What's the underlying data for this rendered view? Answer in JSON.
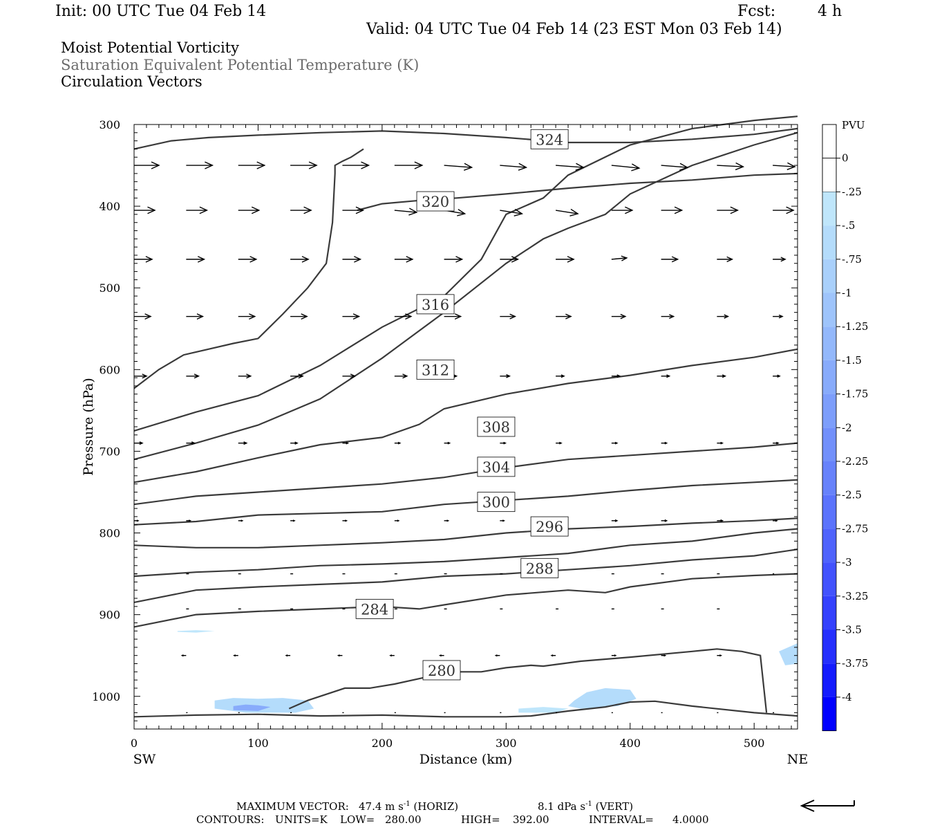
{
  "header": {
    "init": "Init: 00 UTC Tue 04 Feb 14",
    "fcst_label": "Fcst:",
    "fcst_value": "4 h",
    "valid": "Valid: 04 UTC Tue 04 Feb 14 (23 EST Mon 03 Feb 14)"
  },
  "fields": {
    "field1": "Moist Potential Vorticity",
    "field2": "Saturation Equivalent Potential Temperature (K)",
    "field3": "Circulation Vectors"
  },
  "footer": {
    "max_vector_label": "MAXIMUM VECTOR:",
    "max_vector_horiz": "47.4 m s",
    "horiz_exp": "-1",
    "horiz_tag": "(HORIZ)",
    "max_vector_vert": "8.1 dPa s",
    "vert_exp": "-1",
    "vert_tag": "(VERT)",
    "contours_label": "CONTOURS:",
    "units": "UNITS=K",
    "low": "LOW=",
    "low_value": "280.00",
    "high": "HIGH=",
    "high_value": "392.00",
    "interval": "INTERVAL=",
    "interval_value": "4.0000"
  },
  "colors": {
    "contour": "#3a3a3a",
    "vector": "#000000",
    "pv_light": "#bfe6fb",
    "pv_dark": "#0000ff"
  },
  "chart_data": {
    "type": "contour",
    "xlabel": "Distance (km)",
    "ylabel": "Pressure (hPa)",
    "xlim": [
      0,
      535
    ],
    "ylim": [
      1040,
      300
    ],
    "x_ticks": [
      0,
      100,
      200,
      300,
      400,
      500
    ],
    "y_ticks": [
      300,
      400,
      500,
      600,
      700,
      800,
      900,
      1000
    ],
    "x_end_labels": {
      "left": "SW",
      "right": "NE"
    },
    "colorbar": {
      "title": "PVU",
      "labels": [
        "0",
        "-.25",
        "-.5",
        "-.75",
        "-1",
        "-1.25",
        "-1.5",
        "-1.75",
        "-2",
        "-2.25",
        "-2.5",
        "-2.75",
        "-3",
        "-3.25",
        "-3.5",
        "-3.75",
        "-4"
      ],
      "colors": [
        "#ffffff",
        "#bfe6fb",
        "#b4dcfb",
        "#a9d0fb",
        "#9ec4fb",
        "#93b8fb",
        "#88abfb",
        "#7d9efb",
        "#7290fb",
        "#6782fb",
        "#5b73fc",
        "#4f63fc",
        "#4252fd",
        "#3441fd",
        "#252ffe",
        "#141bfe",
        "#0000ff"
      ]
    },
    "contour_labels": [
      "324",
      "320",
      "316",
      "312",
      "308",
      "304",
      "300",
      "296",
      "288",
      "284",
      "280"
    ],
    "contours": [
      {
        "value": 324,
        "x": [
          0,
          30,
          60,
          100,
          150,
          200,
          250,
          300,
          350,
          400,
          450,
          500,
          535
        ],
        "y": [
          330,
          320,
          316,
          313,
          310,
          308,
          311,
          316,
          322,
          322,
          318,
          312,
          305
        ]
      },
      {
        "value": 320,
        "x": [
          180,
          200,
          230,
          260,
          300,
          350,
          400,
          450,
          500,
          535
        ],
        "y": [
          405,
          397,
          393,
          390,
          385,
          378,
          372,
          368,
          362,
          360
        ]
      },
      {
        "value": 316,
        "x": [
          0,
          20,
          40,
          60,
          80,
          100,
          120,
          140,
          155,
          160,
          162,
          162,
          168,
          175,
          185
        ],
        "y": [
          623,
          600,
          582,
          575,
          568,
          562,
          532,
          500,
          470,
          420,
          360,
          350,
          345,
          340,
          330
        ]
      },
      {
        "value": 316,
        "x": [
          0,
          50,
          100,
          150,
          200,
          250,
          280,
          300,
          330,
          350,
          400,
          450,
          500,
          535
        ],
        "y": [
          675,
          652,
          632,
          595,
          548,
          510,
          465,
          410,
          390,
          362,
          325,
          305,
          295,
          290
        ]
      },
      {
        "value": 312,
        "x": [
          0,
          50,
          100,
          150,
          200,
          250,
          300,
          330,
          350,
          380,
          400,
          450,
          500,
          535
        ],
        "y": [
          710,
          690,
          668,
          636,
          586,
          530,
          470,
          440,
          427,
          410,
          385,
          350,
          325,
          310
        ]
      },
      {
        "value": 308,
        "x": [
          0,
          50,
          100,
          150,
          200,
          230,
          250,
          300,
          350,
          400,
          450,
          500,
          535
        ],
        "y": [
          738,
          725,
          708,
          692,
          683,
          667,
          648,
          630,
          617,
          607,
          595,
          585,
          575
        ]
      },
      {
        "value": 304,
        "x": [
          0,
          50,
          100,
          150,
          200,
          250,
          300,
          350,
          400,
          450,
          500,
          535
        ],
        "y": [
          765,
          755,
          750,
          745,
          740,
          732,
          720,
          710,
          705,
          700,
          695,
          690
        ]
      },
      {
        "value": 300,
        "x": [
          0,
          50,
          100,
          150,
          200,
          250,
          300,
          350,
          400,
          450,
          500,
          535
        ],
        "y": [
          790,
          786,
          778,
          776,
          774,
          765,
          760,
          755,
          748,
          742,
          738,
          735
        ]
      },
      {
        "value": 296,
        "x": [
          0,
          50,
          100,
          150,
          200,
          250,
          300,
          350,
          400,
          450,
          500,
          535
        ],
        "y": [
          815,
          818,
          818,
          815,
          812,
          808,
          800,
          795,
          792,
          788,
          785,
          782
        ]
      },
      {
        "value": 292,
        "x": [
          0,
          50,
          100,
          150,
          200,
          250,
          300,
          350,
          400,
          450,
          500,
          535
        ],
        "y": [
          853,
          848,
          845,
          840,
          838,
          835,
          830,
          825,
          815,
          810,
          800,
          795
        ]
      },
      {
        "value": 288,
        "x": [
          0,
          50,
          100,
          150,
          200,
          250,
          300,
          350,
          400,
          450,
          500,
          535
        ],
        "y": [
          885,
          870,
          866,
          863,
          860,
          853,
          850,
          845,
          840,
          833,
          828,
          820
        ]
      },
      {
        "value": 284,
        "x": [
          0,
          50,
          100,
          150,
          200,
          230,
          250,
          300,
          350,
          380,
          400,
          450,
          500,
          535
        ],
        "y": [
          915,
          900,
          896,
          893,
          890,
          893,
          888,
          876,
          870,
          873,
          866,
          856,
          852,
          850
        ]
      },
      {
        "value": 280,
        "x": [
          125,
          140,
          170,
          190,
          210,
          240,
          260,
          280,
          300,
          320,
          330,
          360,
          400,
          450,
          470,
          490,
          505,
          510
        ],
        "y": [
          1015,
          1005,
          990,
          990,
          985,
          975,
          970,
          970,
          965,
          962,
          963,
          957,
          952,
          945,
          942,
          945,
          950,
          1020
        ]
      },
      {
        "value": 280,
        "x": [
          0,
          50,
          100,
          150,
          200,
          250,
          300,
          320,
          350,
          380,
          400,
          420,
          450,
          500,
          535
        ],
        "y": [
          1025,
          1023,
          1022,
          1024,
          1023,
          1025,
          1025,
          1024,
          1018,
          1013,
          1007,
          1006,
          1012,
          1020,
          1024
        ]
      }
    ],
    "pv_regions": [
      {
        "value": -0.5,
        "x": [
          65,
          80,
          100,
          120,
          140,
          145,
          130,
          90,
          65
        ],
        "y": [
          1005,
          1002,
          1003,
          1002,
          1005,
          1015,
          1020,
          1020,
          1015
        ]
      },
      {
        "value": -1.5,
        "x": [
          80,
          90,
          100,
          110,
          100,
          80
        ],
        "y": [
          1012,
          1010,
          1011,
          1013,
          1018,
          1017
        ]
      },
      {
        "value": -0.25,
        "x": [
          35,
          50,
          65,
          50,
          35
        ],
        "y": [
          920,
          919,
          920,
          922,
          921
        ]
      },
      {
        "value": -0.5,
        "x": [
          355,
          365,
          380,
          400,
          405,
          390,
          360,
          350
        ],
        "y": [
          1005,
          995,
          990,
          992,
          1003,
          1012,
          1015,
          1012
        ]
      },
      {
        "value": -0.25,
        "x": [
          310,
          330,
          350,
          340,
          310
        ],
        "y": [
          1015,
          1013,
          1015,
          1020,
          1020
        ]
      },
      {
        "value": -0.5,
        "x": [
          520,
          535,
          535,
          525
        ],
        "y": [
          945,
          935,
          960,
          962
        ]
      }
    ],
    "vectors": [
      {
        "p": 350,
        "x": [
          0,
          42,
          84,
          126,
          168,
          210,
          250,
          295,
          340,
          385,
          425,
          470,
          515
        ],
        "u": [
          36,
          38,
          38,
          38,
          38,
          40,
          40,
          38,
          40,
          40,
          38,
          38,
          32
        ],
        "w": [
          0,
          0,
          0,
          0,
          0,
          0,
          -3,
          -3,
          -3,
          -4,
          -3,
          -2,
          -2
        ]
      },
      {
        "p": 405,
        "x": [
          0,
          42,
          84,
          126,
          168,
          210,
          250,
          295,
          340,
          385,
          425,
          470,
          515
        ],
        "u": [
          30,
          30,
          30,
          30,
          30,
          32,
          30,
          32,
          32,
          30,
          30,
          30,
          30
        ],
        "w": [
          0,
          0,
          0,
          0,
          0,
          -3,
          -5,
          -5,
          -5,
          0,
          0,
          0,
          0
        ]
      },
      {
        "p": 465,
        "x": [
          0,
          42,
          84,
          126,
          168,
          210,
          250,
          295,
          340,
          385,
          425,
          470,
          515
        ],
        "u": [
          26,
          26,
          26,
          26,
          26,
          26,
          26,
          26,
          26,
          22,
          24,
          22,
          18
        ],
        "w": [
          0,
          0,
          0,
          0,
          0,
          0,
          0,
          0,
          0,
          2,
          0,
          0,
          0
        ]
      },
      {
        "p": 535,
        "x": [
          0,
          42,
          84,
          126,
          168,
          210,
          250,
          295,
          340,
          385,
          425,
          470,
          515
        ],
        "u": [
          24,
          24,
          24,
          24,
          24,
          24,
          24,
          22,
          22,
          20,
          18,
          16,
          14
        ],
        "w": [
          0,
          0,
          0,
          0,
          0,
          0,
          0,
          0,
          0,
          0,
          0,
          0,
          0
        ]
      },
      {
        "p": 608,
        "x": [
          0,
          42,
          84,
          126,
          168,
          210,
          250,
          295,
          340,
          385,
          425,
          470,
          515
        ],
        "u": [
          18,
          18,
          18,
          18,
          18,
          18,
          18,
          14,
          12,
          12,
          12,
          12,
          10
        ],
        "w": [
          0,
          0,
          0,
          0,
          0,
          0,
          0,
          0,
          0,
          0,
          0,
          0,
          0
        ]
      },
      {
        "p": 690,
        "x": [
          0,
          42,
          84,
          126,
          168,
          210,
          250,
          295,
          340,
          385,
          425,
          470,
          515
        ],
        "u": [
          12,
          12,
          12,
          10,
          8,
          8,
          8,
          8,
          8,
          8,
          8,
          8,
          8
        ],
        "w": [
          0,
          0,
          0,
          0,
          0,
          0,
          0,
          0,
          0,
          0,
          0,
          0,
          0
        ]
      },
      {
        "p": 785,
        "x": [
          0,
          42,
          84,
          126,
          168,
          210,
          250,
          295,
          340,
          385,
          425,
          470,
          515
        ],
        "u": [
          6,
          6,
          6,
          6,
          6,
          6,
          6,
          6,
          6,
          8,
          8,
          8,
          6
        ],
        "w": [
          0,
          0,
          0,
          0,
          0,
          0,
          0,
          0,
          0,
          0,
          0,
          0,
          0
        ]
      },
      {
        "p": 850,
        "x": [
          0,
          42,
          84,
          126,
          168,
          210,
          250,
          295,
          340,
          385,
          425,
          470,
          515
        ],
        "u": [
          4,
          4,
          4,
          4,
          4,
          4,
          4,
          4,
          4,
          4,
          4,
          4,
          2
        ],
        "w": [
          0,
          0,
          0,
          0,
          0,
          0,
          0,
          0,
          0,
          0,
          0,
          0,
          0
        ]
      },
      {
        "p": 893,
        "x": [
          0,
          42,
          84,
          126,
          168,
          210,
          250,
          295,
          340,
          385,
          425,
          470,
          515
        ],
        "u": [
          0,
          4,
          4,
          4,
          4,
          4,
          4,
          4,
          4,
          4,
          4,
          4,
          0
        ],
        "w": [
          0,
          0,
          0,
          0,
          0,
          0,
          0,
          0,
          0,
          0,
          0,
          0,
          0
        ]
      },
      {
        "p": 950,
        "x": [
          42,
          84,
          126,
          168,
          210,
          250,
          295,
          340,
          385,
          425,
          470
        ],
        "u": [
          -6,
          -6,
          -6,
          -6,
          -6,
          -6,
          -6,
          -6,
          6,
          6,
          6
        ],
        "w": [
          0,
          0,
          0,
          0,
          0,
          0,
          0,
          0,
          0,
          0,
          0
        ]
      },
      {
        "p": 1020,
        "x": [
          42,
          84,
          126,
          168,
          210,
          250,
          295,
          340,
          385,
          425,
          470,
          515
        ],
        "u": [
          2,
          2,
          2,
          2,
          2,
          2,
          2,
          2,
          2,
          2,
          2,
          2
        ],
        "w": [
          0,
          0,
          0,
          0,
          0,
          0,
          0,
          0,
          0,
          0,
          0,
          0
        ]
      }
    ]
  }
}
